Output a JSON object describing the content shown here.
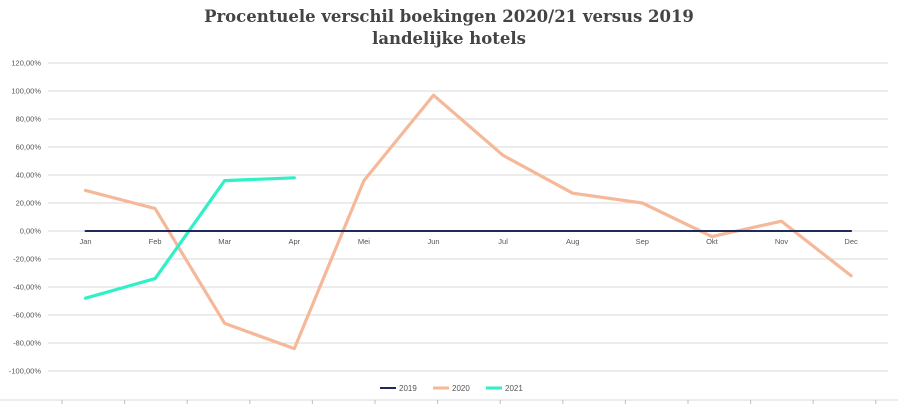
{
  "chart_data": {
    "type": "line",
    "title_line1": "Procentuele verschil boekingen 2020/21 versus 2019",
    "title_line2": "landelijke hotels",
    "categories": [
      "Jan",
      "Feb",
      "Mar",
      "Apr",
      "Mei",
      "Jun",
      "Jul",
      "Aug",
      "Sep",
      "Okt",
      "Nov",
      "Dec"
    ],
    "y_ticks": [
      "120,00%",
      "100,00%",
      "80,00%",
      "60,00%",
      "40,00%",
      "20,00%",
      "0,00%",
      "-20,00%",
      "-40,00%",
      "-60,00%",
      "-80,00%",
      "-100,00%"
    ],
    "ylim": [
      -100,
      120
    ],
    "grid": true,
    "legend_position": "bottom",
    "series": [
      {
        "name": "2019",
        "color": "#1f2a5c",
        "values": [
          0,
          0,
          0,
          0,
          0,
          0,
          0,
          0,
          0,
          0,
          0,
          0
        ]
      },
      {
        "name": "2020",
        "color": "#f5b899",
        "values": [
          29,
          16,
          -66,
          -84,
          36,
          97,
          54,
          27,
          20,
          -4,
          7,
          -32
        ]
      },
      {
        "name": "2021",
        "color": "#2ff0c6",
        "values": [
          -48,
          -34,
          36,
          38,
          null,
          null,
          null,
          null,
          null,
          null,
          null,
          null
        ]
      }
    ]
  }
}
